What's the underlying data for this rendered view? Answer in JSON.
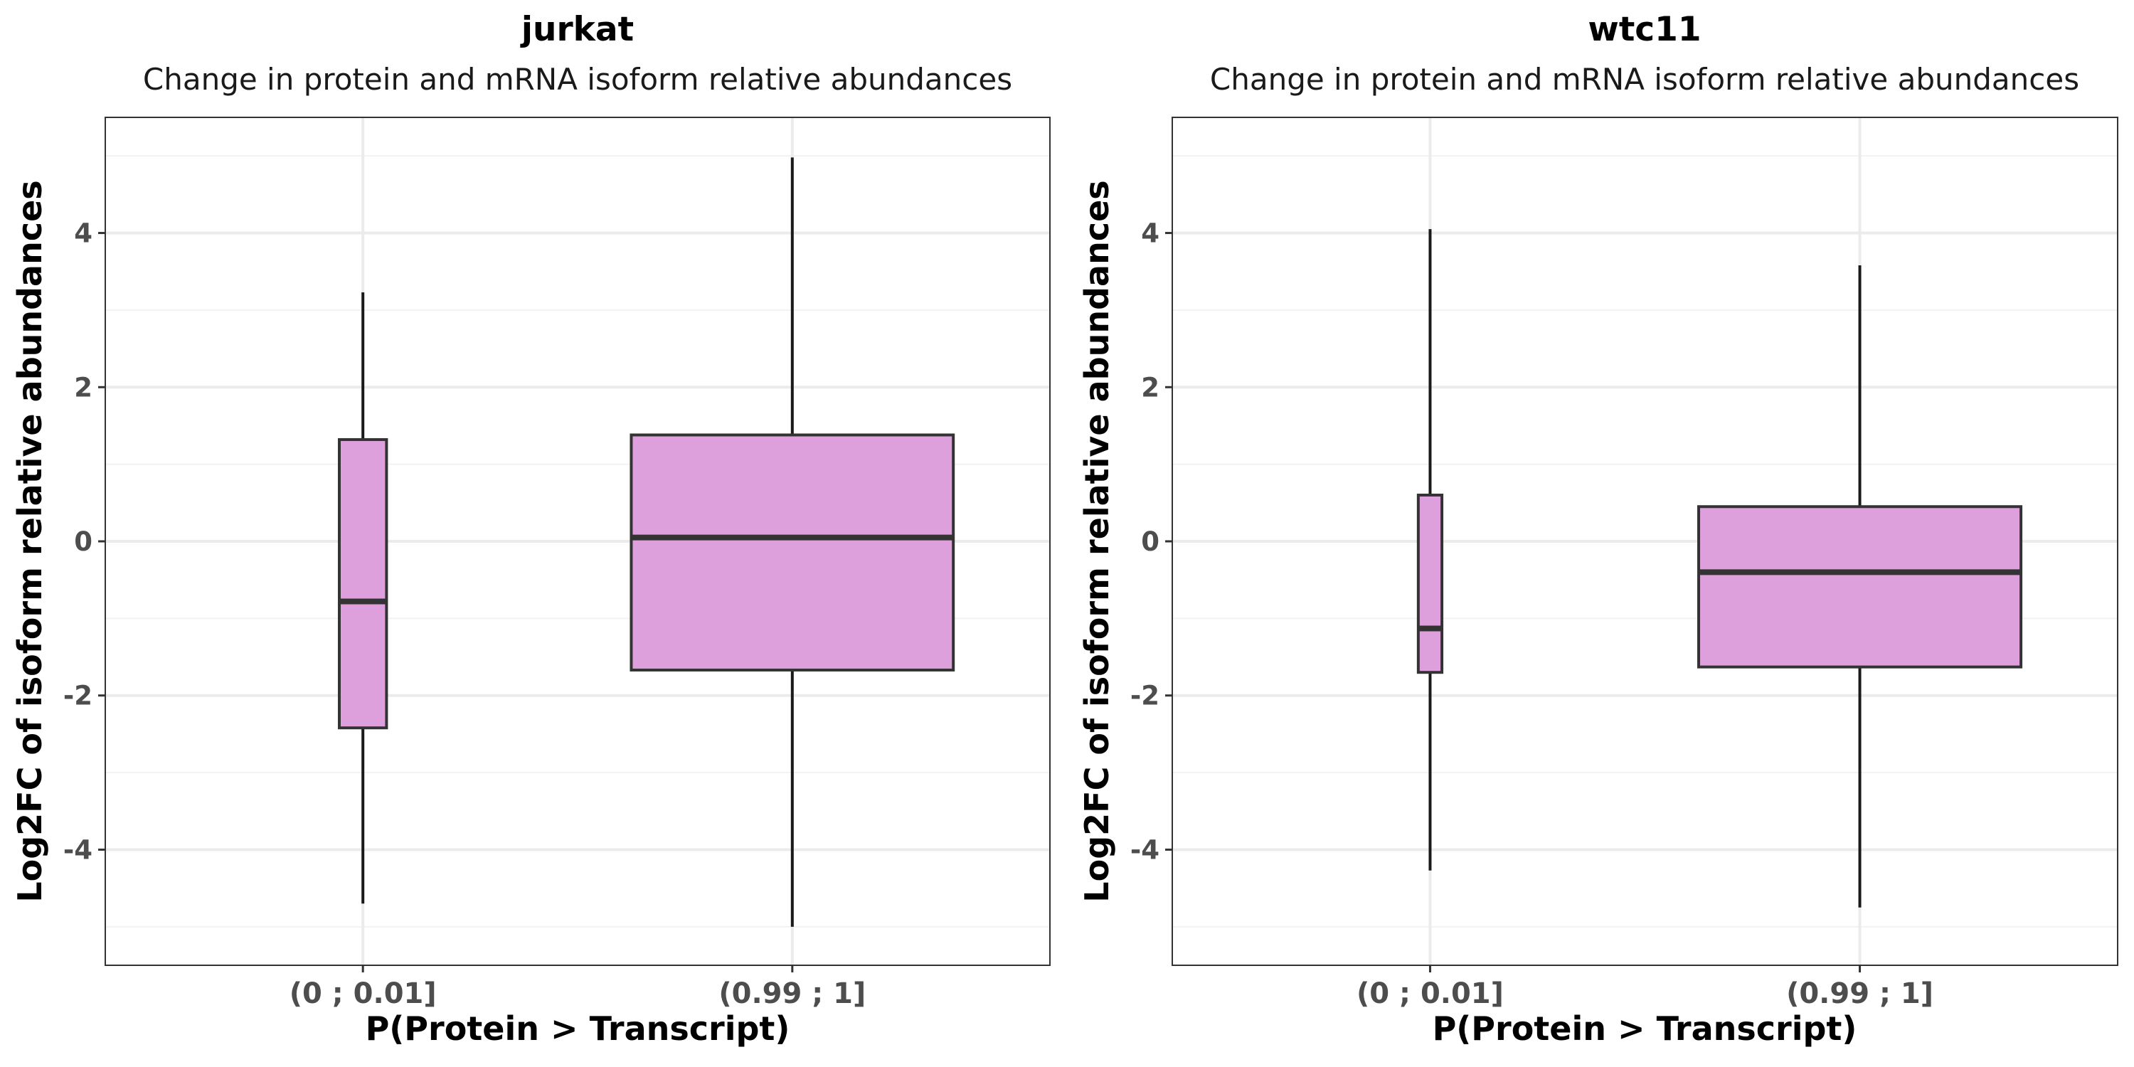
{
  "chart_data": [
    {
      "type": "box",
      "title": "jurkat",
      "subtitle": "Change in protein and mRNA isoform relative abundances",
      "xlabel": "P(Protein > Transcript)",
      "ylabel": "Log2FC of isoform relative abundances",
      "ylim": [
        -5.5,
        5.5
      ],
      "yticks": [
        -4,
        -2,
        0,
        2,
        4
      ],
      "yminor": [
        -5,
        -3,
        -1,
        1,
        3,
        5
      ],
      "grid": true,
      "box_color": "#dda0dd",
      "categories": [
        {
          "label": "(0 ; 0.01]",
          "whisker_low": -4.7,
          "q1": -2.42,
          "median": -0.78,
          "q3": 1.32,
          "whisker_high": 3.23,
          "width": 0.11
        },
        {
          "label": "(0.99 ; 1]",
          "whisker_low": -5.0,
          "q1": -1.67,
          "median": 0.05,
          "q3": 1.38,
          "whisker_high": 4.98,
          "width": 0.75
        }
      ]
    },
    {
      "type": "box",
      "title": "wtc11",
      "subtitle": "Change in protein and mRNA isoform relative abundances",
      "xlabel": "P(Protein > Transcript)",
      "ylabel": "Log2FC of isoform relative abundances",
      "ylim": [
        -5.5,
        5.5
      ],
      "yticks": [
        -4,
        -2,
        0,
        2,
        4
      ],
      "yminor": [
        -5,
        -3,
        -1,
        1,
        3,
        5
      ],
      "grid": true,
      "box_color": "#dda0dd",
      "categories": [
        {
          "label": "(0 ; 0.01]",
          "whisker_low": -4.27,
          "q1": -1.7,
          "median": -1.13,
          "q3": 0.6,
          "whisker_high": 4.05,
          "width": 0.055
        },
        {
          "label": "(0.99 ; 1]",
          "whisker_low": -4.75,
          "q1": -1.63,
          "median": -0.4,
          "q3": 0.45,
          "whisker_high": 3.58,
          "width": 0.75
        }
      ]
    }
  ]
}
